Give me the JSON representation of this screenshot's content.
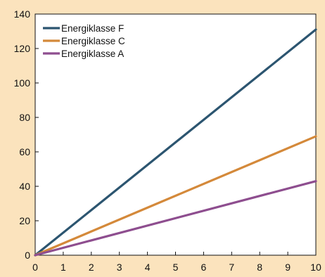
{
  "chart_data": {
    "type": "line",
    "xlim": [
      0,
      10
    ],
    "ylim": [
      0,
      140
    ],
    "x_ticks": [
      0,
      1,
      2,
      3,
      4,
      5,
      6,
      7,
      8,
      9,
      10
    ],
    "y_ticks": [
      0,
      20,
      40,
      60,
      80,
      100,
      120,
      140
    ],
    "grid": false,
    "legend_position": "top-left",
    "background": "#fbe3bd",
    "series": [
      {
        "name": "Energiklasse F",
        "color": "#2c5570",
        "x": [
          0,
          10
        ],
        "y": [
          0,
          131
        ]
      },
      {
        "name": "Energiklasse C",
        "color": "#d4893a",
        "x": [
          0,
          10
        ],
        "y": [
          0,
          69
        ]
      },
      {
        "name": "Energiklasse A",
        "color": "#8e4e8f",
        "x": [
          0,
          10
        ],
        "y": [
          0,
          43
        ]
      }
    ]
  }
}
